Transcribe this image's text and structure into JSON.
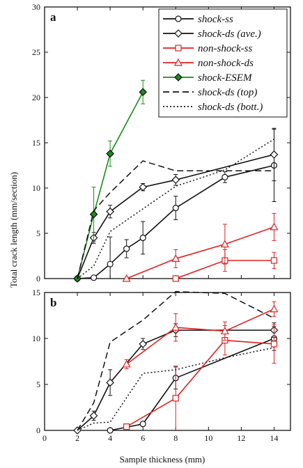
{
  "figure": {
    "xlabel": "Sample thickness (mm)",
    "ylabel": "Total crack length (mm/section)"
  },
  "colors": {
    "black": "#111111",
    "red": "#e02020",
    "green": "#1a8c1a"
  },
  "legend": {
    "entries": [
      {
        "label": "shock-ss",
        "color": "#111111",
        "marker": "circle",
        "dash": "solid"
      },
      {
        "label": "shock-ds (ave.)",
        "color": "#111111",
        "marker": "diamond",
        "dash": "solid"
      },
      {
        "label": "non-shock-ss",
        "color": "#e02020",
        "marker": "square",
        "dash": "solid"
      },
      {
        "label": "non-shock-ds",
        "color": "#e02020",
        "marker": "triangle",
        "dash": "solid"
      },
      {
        "label": "shock-ESEM",
        "color": "#1a8c1a",
        "marker": "filled-diamond",
        "dash": "solid"
      },
      {
        "label": "shock-ds (top)",
        "color": "#111111",
        "marker": "none",
        "dash": "dashed"
      },
      {
        "label": "shock-ds (bott.)",
        "color": "#111111",
        "marker": "none",
        "dash": "dotted"
      }
    ]
  },
  "chart_data": [
    {
      "type": "line",
      "panel_label": "a",
      "xlim": [
        0,
        15
      ],
      "ylim": [
        0,
        30
      ],
      "x_ticks": [
        0,
        2,
        4,
        6,
        8,
        10,
        12,
        14
      ],
      "y_ticks": [
        0,
        5,
        10,
        15,
        20,
        25,
        30
      ],
      "show_x_ticklabels": false,
      "series": [
        {
          "name": "shock-ss",
          "color": "#111111",
          "marker": "circle",
          "dash": "solid",
          "x": [
            2,
            3,
            4,
            5,
            6,
            8,
            11,
            14
          ],
          "y": [
            0,
            0.1,
            1.6,
            3.3,
            4.5,
            7.8,
            11.2,
            12.5
          ],
          "err": [
            0,
            0,
            3.0,
            1.0,
            1.8,
            1.3,
            0.6,
            4.0
          ]
        },
        {
          "name": "shock-ds (ave.)",
          "color": "#111111",
          "marker": "diamond",
          "dash": "solid",
          "x": [
            2,
            3,
            4,
            6,
            8,
            14
          ],
          "y": [
            0,
            4.5,
            7.4,
            10.1,
            10.9,
            13.7
          ],
          "err": [
            0,
            0.6,
            0.7,
            0.4,
            0.6,
            2.9
          ]
        },
        {
          "name": "non-shock-ss",
          "color": "#e02020",
          "marker": "square",
          "dash": "solid",
          "x": [
            8,
            11,
            14
          ],
          "y": [
            0,
            2.0,
            2.0
          ],
          "err": [
            0,
            1.2,
            0.9
          ]
        },
        {
          "name": "non-shock-ds",
          "color": "#e02020",
          "marker": "triangle",
          "dash": "solid",
          "x": [
            5,
            8,
            11,
            14
          ],
          "y": [
            0,
            2.2,
            3.8,
            5.7
          ],
          "err": [
            0,
            1.0,
            2.2,
            1.5
          ]
        },
        {
          "name": "shock-ESEM",
          "color": "#1a8c1a",
          "marker": "filled-diamond",
          "dash": "solid",
          "x": [
            2,
            3,
            4,
            6
          ],
          "y": [
            0,
            7.1,
            13.8,
            20.6
          ],
          "err": [
            0,
            3.0,
            1.4,
            1.3
          ]
        },
        {
          "name": "shock-ds (top)",
          "color": "#111111",
          "marker": "none",
          "dash": "dashed",
          "x": [
            2,
            3,
            4,
            6,
            8,
            11,
            14
          ],
          "y": [
            0,
            7.5,
            9.5,
            13.0,
            11.9,
            11.9,
            11.9
          ]
        },
        {
          "name": "shock-ds (bott.)",
          "color": "#111111",
          "marker": "none",
          "dash": "dotted",
          "x": [
            2,
            3,
            4,
            6,
            8,
            11,
            14
          ],
          "y": [
            0,
            1.4,
            5.2,
            7.7,
            10.2,
            12.0,
            15.4
          ]
        }
      ]
    },
    {
      "type": "line",
      "panel_label": "b",
      "xlim": [
        0,
        15
      ],
      "ylim": [
        0,
        15
      ],
      "x_ticks": [
        0,
        2,
        4,
        6,
        8,
        10,
        12,
        14
      ],
      "y_ticks": [
        0,
        5,
        10,
        15
      ],
      "show_x_ticklabels": true,
      "series": [
        {
          "name": "shock-ss",
          "color": "#111111",
          "marker": "circle",
          "dash": "solid",
          "x": [
            4,
            6,
            8,
            14
          ],
          "y": [
            0,
            0.7,
            5.7,
            10.0
          ],
          "err": [
            0,
            0,
            1.2,
            1.3
          ]
        },
        {
          "name": "shock-ds (ave.)",
          "color": "#111111",
          "marker": "diamond",
          "dash": "solid",
          "x": [
            2,
            3,
            4,
            6,
            8,
            14
          ],
          "y": [
            0,
            1.6,
            5.2,
            9.4,
            10.9,
            10.9
          ],
          "err": [
            0,
            0.5,
            1.4,
            0.6,
            0.7,
            0.8
          ]
        },
        {
          "name": "non-shock-ss",
          "color": "#e02020",
          "marker": "square",
          "dash": "solid",
          "x": [
            5,
            8,
            11,
            14
          ],
          "y": [
            0.4,
            3.5,
            9.8,
            9.4
          ],
          "err": [
            0.3,
            3.5,
            1.6,
            2.1
          ]
        },
        {
          "name": "non-shock-ds",
          "color": "#e02020",
          "marker": "triangle",
          "dash": "solid",
          "x": [
            5,
            8,
            11,
            14
          ],
          "y": [
            7.2,
            11.2,
            10.8,
            13.2
          ],
          "err": [
            0.5,
            1.5,
            1.0,
            0.8
          ]
        },
        {
          "name": "shock-ds (top)",
          "color": "#111111",
          "marker": "none",
          "dash": "dashed",
          "x": [
            2,
            3,
            4,
            6,
            8,
            11,
            14
          ],
          "y": [
            0,
            3.0,
            9.6,
            12.0,
            15.1,
            14.9,
            12.2
          ]
        },
        {
          "name": "shock-ds (bott.)",
          "color": "#111111",
          "marker": "none",
          "dash": "dotted",
          "x": [
            2,
            3,
            4,
            6,
            8,
            11,
            14
          ],
          "y": [
            0,
            0.8,
            0.9,
            6.2,
            6.6,
            7.9,
            9.0
          ]
        }
      ]
    }
  ]
}
